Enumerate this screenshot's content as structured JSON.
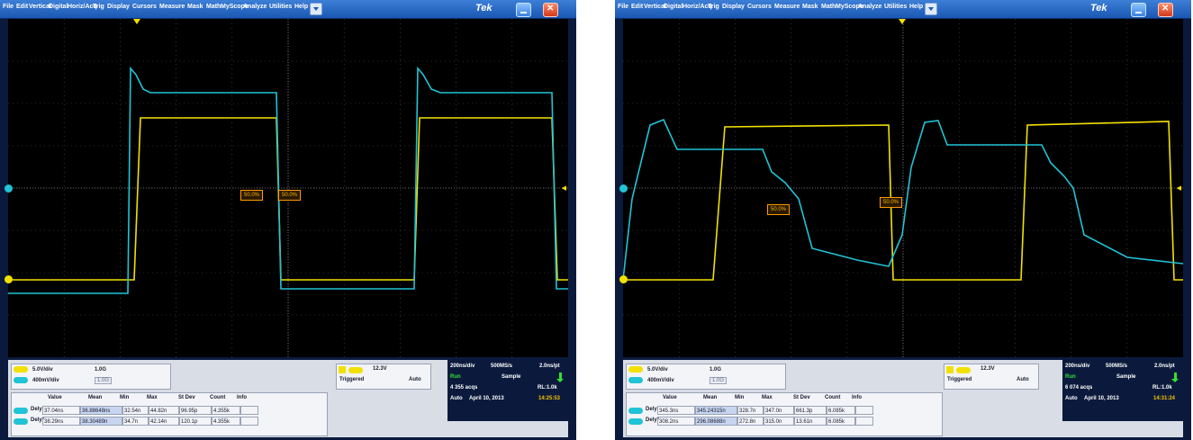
{
  "menu": [
    "File",
    "Edit",
    "Vertical",
    "Digital",
    "Horiz/Acq",
    "Trig",
    "Display",
    "Cursors",
    "Measure",
    "Mask",
    "Math",
    "MyScope",
    "Analyze",
    "Utilities",
    "Help"
  ],
  "brand": "Tek",
  "colors": {
    "ch1": "#f2e100",
    "ch2": "#21c3d6",
    "menubar": "#1a58b3",
    "grid": "#8a8a8a",
    "running": "#33e033",
    "timestamp": "#f2c200"
  },
  "icons": {
    "minimize": "minimize-icon",
    "close": "close-icon",
    "menu_dropdown": "chevron-down-icon"
  },
  "measure_headers": [
    "Value",
    "Mean",
    "Min",
    "Max",
    "St Dev",
    "Count",
    "Info"
  ],
  "scopes": [
    {
      "ch1_scale": "5.0V/div",
      "ch2_scale": "400mV/div",
      "bw_top": "1.0G",
      "bw_bottom": "1.0G",
      "trigger_level": "12.3V",
      "trigger_status": "Triggered",
      "trigger_mode": "Auto",
      "timebase": "200ns/div",
      "sample_rate": "500MS/s",
      "pts": "2.0ns/pt",
      "run_state": "Run",
      "acq_mode": "Sample",
      "acqs": "4 355 acqs",
      "record_length": "RL:1.0k",
      "auto": "Auto",
      "date": "April 10, 2013",
      "time": "14:25:53",
      "pct_tags": [
        "50.0%",
        "50.0%"
      ],
      "measurements": [
        {
          "label": "Dely",
          "cells": [
            "37.04ns",
            "36.88648ns",
            "32.54n",
            "44.82n",
            "96.95p",
            "4.355k",
            ""
          ]
        },
        {
          "label": "Dely*",
          "cells": [
            "38.29ns",
            "38.30489n",
            "34.7n",
            "42.14n",
            "120.1p",
            "4.355k",
            ""
          ]
        }
      ]
    },
    {
      "ch1_scale": "5.0V/div",
      "ch2_scale": "400mV/div",
      "bw_top": "1.0G",
      "bw_bottom": "1.0G",
      "trigger_level": "12.3V",
      "trigger_status": "Triggered",
      "trigger_mode": "Auto",
      "timebase": "200ns/div",
      "sample_rate": "500MS/s",
      "pts": "2.0ns/pt",
      "run_state": "Run",
      "acq_mode": "Sample",
      "acqs": "6 074 acqs",
      "record_length": "RL:1.0k",
      "auto": "Auto",
      "date": "April 10, 2013",
      "time": "14:31:24",
      "pct_tags": [
        "50.0%",
        "50.0%"
      ],
      "measurements": [
        {
          "label": "Dely",
          "cells": [
            "345.3ns",
            "345.24315n",
            "328.7n",
            "347.0n",
            "661.3p",
            "6.085k",
            ""
          ]
        },
        {
          "label": "Dely*",
          "cells": [
            "308.2ns",
            "296.08688n",
            "272.8n",
            "315.0n",
            "13.61n",
            "6.085k",
            ""
          ]
        }
      ]
    }
  ]
}
